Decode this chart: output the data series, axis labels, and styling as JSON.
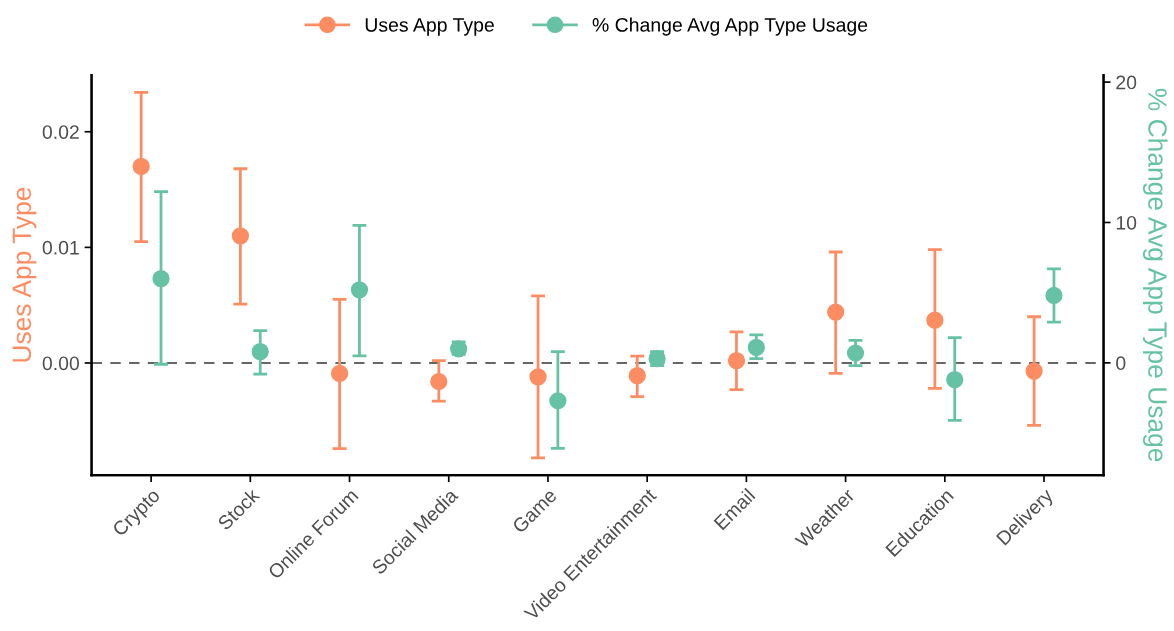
{
  "chart_data": {
    "type": "scatter",
    "ylabel": "Uses App Type",
    "y2label": "% Change Avg App Type Usage",
    "categories": [
      "Crypto",
      "Stock",
      "Online Forum",
      "Social Media",
      "Game",
      "Video Entertainment",
      "Email",
      "Weather",
      "Education",
      "Delivery"
    ],
    "series": [
      {
        "name": "Uses App Type",
        "color": "#fc8d62",
        "values": [
          0.017,
          0.011,
          -0.0009,
          -0.0016,
          -0.0012,
          -0.0011,
          0.0002,
          0.0044,
          0.0037,
          -0.0007
        ],
        "errors": [
          [
            0.0105,
            0.0234
          ],
          [
            0.0051,
            0.0168
          ],
          [
            -0.0074,
            0.0055
          ],
          [
            -0.0033,
            0.0002
          ],
          [
            -0.0082,
            0.0058
          ],
          [
            -0.0029,
            0.0006
          ],
          [
            -0.0023,
            0.0027
          ],
          [
            -0.0009,
            0.0096
          ],
          [
            -0.0022,
            0.0098
          ],
          [
            -0.0054,
            0.004
          ]
        ]
      },
      {
        "name": "% Change Avg App Type Usage",
        "color": "#66c2a5",
        "axis": "y2",
        "values": [
          6.0,
          0.8,
          5.2,
          1.0,
          -2.7,
          0.3,
          1.1,
          0.7,
          -1.2,
          4.8
        ],
        "errors": [
          [
            -0.1,
            12.2
          ],
          [
            -0.8,
            2.3
          ],
          [
            0.5,
            9.8
          ],
          [
            0.6,
            1.5
          ],
          [
            -6.1,
            0.8
          ],
          [
            -0.2,
            0.8
          ],
          [
            0.3,
            2.0
          ],
          [
            -0.2,
            1.6
          ],
          [
            -4.1,
            1.8
          ],
          [
            2.9,
            6.7
          ]
        ]
      }
    ],
    "ylim": [
      -0.0097,
      0.0249
    ],
    "yticks": [
      {
        "value": 0,
        "label": "0.00"
      },
      {
        "value": 0.01,
        "label": "0.01"
      },
      {
        "value": 0.02,
        "label": "0.02"
      }
    ],
    "y2lim": [
      -8.0,
      20.5
    ],
    "y2ticks": [
      0,
      10,
      20
    ],
    "ref_lines": [
      {
        "axis": "y",
        "value": 0,
        "label": null,
        "color": "#666666",
        "line_style": "dashed"
      }
    ],
    "legend": "top",
    "marker": "circle",
    "grid": false
  }
}
